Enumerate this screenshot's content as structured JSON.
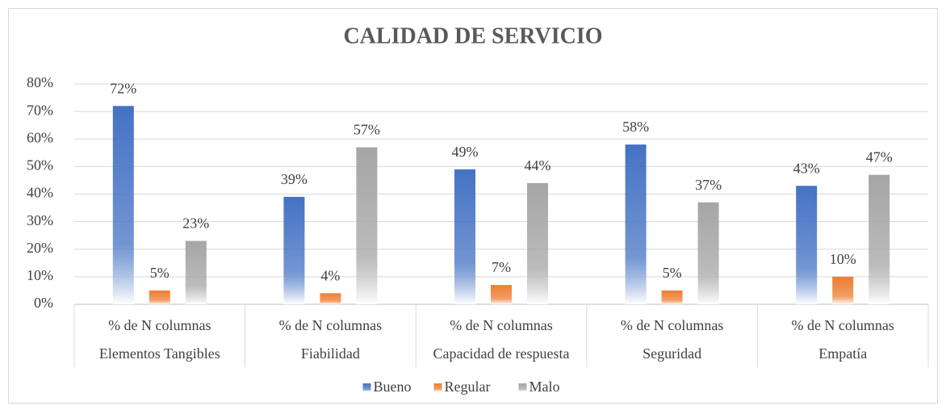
{
  "chart_data": {
    "type": "bar",
    "title": "CALIDAD DE SERVICIO",
    "categories": [
      "% de N columnas",
      "% de N columnas",
      "% de N columnas",
      "% de N columnas",
      "% de N columnas"
    ],
    "groups": [
      "Elementos Tangibles",
      "Fiabilidad",
      "Capacidad de respuesta",
      "Seguridad",
      "Empatía"
    ],
    "series": [
      {
        "name": "Bueno",
        "color": "#4472c4",
        "values": [
          72,
          39,
          49,
          58,
          43
        ],
        "value_labels": [
          "72%",
          "39%",
          "49%",
          "58%",
          "43%"
        ]
      },
      {
        "name": "Regular",
        "color": "#ed7d31",
        "values": [
          5,
          4,
          7,
          5,
          10
        ],
        "value_labels": [
          "5%",
          "4%",
          "7%",
          "5%",
          "10%"
        ]
      },
      {
        "name": "Malo",
        "color": "#a5a5a5",
        "values": [
          23,
          57,
          44,
          37,
          47
        ],
        "value_labels": [
          "23%",
          "57%",
          "44%",
          "37%",
          "47%"
        ]
      }
    ],
    "ylim": [
      0,
      80
    ],
    "yticks": [
      {
        "value": 0,
        "label": "0%"
      },
      {
        "value": 10,
        "label": "10%"
      },
      {
        "value": 20,
        "label": "20%"
      },
      {
        "value": 30,
        "label": "30%"
      },
      {
        "value": 40,
        "label": "40%"
      },
      {
        "value": 50,
        "label": "50%"
      },
      {
        "value": 60,
        "label": "60%"
      },
      {
        "value": 70,
        "label": "70%"
      },
      {
        "value": 80,
        "label": "80%"
      }
    ],
    "grid": true,
    "legend": "bottom"
  }
}
